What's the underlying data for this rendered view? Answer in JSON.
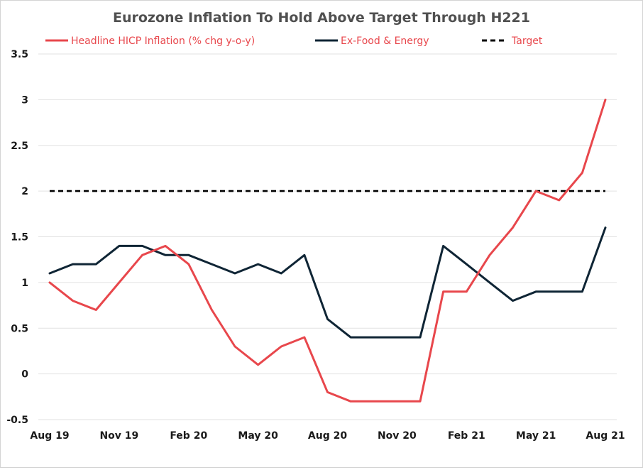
{
  "chart_data": {
    "type": "line",
    "title": "Eurozone Inflation To Hold Above Target Through H221",
    "xlabel": "",
    "ylabel": "",
    "x": [
      "Aug 19",
      "Sep 19",
      "Oct 19",
      "Nov 19",
      "Dec 19",
      "Jan 20",
      "Feb 20",
      "Mar 20",
      "Apr 20",
      "May 20",
      "Jun 20",
      "Jul 20",
      "Aug 20",
      "Sep 20",
      "Oct 20",
      "Nov 20",
      "Dec 20",
      "Jan 21",
      "Feb 21",
      "Mar 21",
      "Apr 21",
      "May 21",
      "Jun 21",
      "Jul 21",
      "Aug 21"
    ],
    "x_tick_labels": [
      "Aug 19",
      "Nov 19",
      "Feb 20",
      "May 20",
      "Aug 20",
      "Nov 20",
      "Feb 21",
      "May 21",
      "Aug 21"
    ],
    "y_ticks": [
      -0.5,
      0,
      0.5,
      1,
      1.5,
      2,
      2.5,
      3,
      3.5
    ],
    "y_tick_labels": [
      "-0.5",
      "0",
      "0.5",
      "1",
      "1.5",
      "2",
      "2.5",
      "3",
      "3.5"
    ],
    "ylim": [
      -0.5,
      3.5
    ],
    "grid": true,
    "legend_position": "top",
    "series": [
      {
        "name": "Headline HICP Inflation (% chg y-o-y)",
        "color": "#e8474c",
        "style": "solid",
        "values": [
          1.0,
          0.8,
          0.7,
          1.0,
          1.3,
          1.4,
          1.2,
          0.7,
          0.3,
          0.1,
          0.3,
          0.4,
          -0.2,
          -0.3,
          -0.3,
          -0.3,
          -0.3,
          0.9,
          0.9,
          1.3,
          1.6,
          2.0,
          1.9,
          2.2,
          3.0
        ]
      },
      {
        "name": "Ex-Food & Energy",
        "color": "#0f2535",
        "style": "solid",
        "values": [
          1.1,
          1.2,
          1.2,
          1.4,
          1.4,
          1.3,
          1.3,
          1.2,
          1.1,
          1.2,
          1.1,
          1.3,
          0.6,
          0.4,
          0.4,
          0.4,
          0.4,
          1.4,
          1.2,
          1.0,
          0.8,
          0.9,
          0.9,
          0.9,
          1.6
        ]
      },
      {
        "name": "Target",
        "color": "#000000",
        "style": "dashed",
        "values": [
          2.0,
          2.0,
          2.0,
          2.0,
          2.0,
          2.0,
          2.0,
          2.0,
          2.0,
          2.0,
          2.0,
          2.0,
          2.0,
          2.0,
          2.0,
          2.0,
          2.0,
          2.0,
          2.0,
          2.0,
          2.0,
          2.0,
          2.0,
          2.0,
          2.0
        ]
      }
    ],
    "colors": {
      "title": "#505050",
      "legend_text": "#e8474c",
      "tick_label": "#1a1a1a",
      "grid": "#e2e2e2"
    }
  }
}
